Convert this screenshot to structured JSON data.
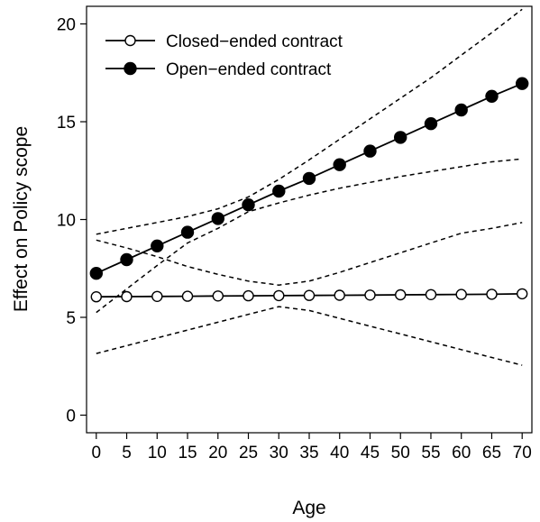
{
  "chart_data": {
    "type": "line",
    "title": "",
    "xlabel": "Age",
    "ylabel": "Effect on Policy scope",
    "x": [
      0,
      5,
      10,
      15,
      20,
      25,
      30,
      35,
      40,
      45,
      50,
      55,
      60,
      65,
      70
    ],
    "xticks": [
      "0",
      "5",
      "10",
      "15",
      "20",
      "25",
      "30",
      "35",
      "40",
      "45",
      "50",
      "55",
      "60",
      "65",
      "70"
    ],
    "yticks": [
      "0",
      "5",
      "10",
      "15",
      "20"
    ],
    "xlim": [
      -1.6,
      71.6
    ],
    "ylim": [
      -0.9,
      20.9
    ],
    "grid": false,
    "legend_position": "top-left",
    "series": [
      {
        "name": "Closed−ended contract",
        "marker": "open-circle",
        "color": "#000000",
        "values": [
          6.05,
          6.06,
          6.07,
          6.08,
          6.09,
          6.1,
          6.11,
          6.12,
          6.13,
          6.14,
          6.15,
          6.16,
          6.17,
          6.18,
          6.2
        ],
        "ci_lower": [
          3.15,
          3.55,
          3.95,
          4.35,
          4.75,
          5.15,
          5.55,
          5.35,
          4.95,
          4.55,
          4.15,
          3.75,
          3.35,
          2.95,
          2.55
        ],
        "ci_upper": [
          8.95,
          8.55,
          8.1,
          7.6,
          7.2,
          6.85,
          6.65,
          6.85,
          7.3,
          7.8,
          8.3,
          8.8,
          9.3,
          9.55,
          9.85
        ]
      },
      {
        "name": "Open−ended contract",
        "marker": "filled-circle",
        "color": "#000000",
        "values": [
          7.25,
          7.95,
          8.65,
          9.35,
          10.05,
          10.75,
          11.45,
          12.1,
          12.8,
          13.5,
          14.2,
          14.9,
          15.6,
          16.3,
          16.95
        ],
        "ci_lower": [
          5.25,
          6.45,
          7.65,
          8.8,
          9.55,
          10.4,
          10.85,
          11.25,
          11.6,
          11.9,
          12.2,
          12.45,
          12.7,
          12.95,
          13.1
        ],
        "ci_upper": [
          9.25,
          9.55,
          9.85,
          10.15,
          10.55,
          11.15,
          12.05,
          13.05,
          14.1,
          15.15,
          16.2,
          17.25,
          18.4,
          19.55,
          20.75
        ]
      }
    ]
  }
}
